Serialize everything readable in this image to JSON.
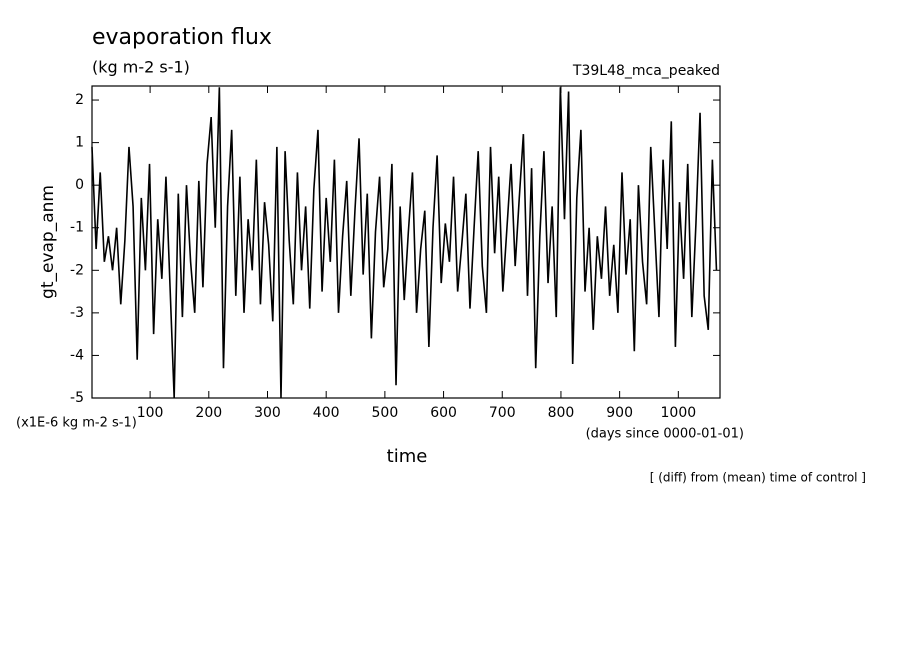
{
  "chart_data": {
    "type": "line",
    "title": "evaporation flux",
    "subtitle": "(kg m-2 s-1)",
    "run_label": "T39L48_mca_peaked",
    "y_label": "gt_evap_anm",
    "y_unit": "(x1E-6 kg m-2 s-1)",
    "x_label": "time",
    "x_unit": "(days since 0000-01-01)",
    "note": "[ (diff) from (mean) time of control ]",
    "xlim": [
      1,
      1071
    ],
    "ylim": [
      -5,
      2.33
    ],
    "xticks": [
      100,
      200,
      300,
      400,
      500,
      600,
      700,
      800,
      900,
      1000
    ],
    "yticks": [
      -5,
      -4,
      -3,
      -2,
      -1,
      0,
      1,
      2
    ],
    "series": [
      {
        "name": "gt_evap_anm",
        "color": "#000000",
        "x": [
          1,
          8,
          15,
          22,
          29,
          36,
          43,
          50,
          57,
          64,
          71,
          78,
          85,
          92,
          99,
          106,
          113,
          120,
          127,
          134,
          141,
          148,
          155,
          162,
          169,
          176,
          183,
          190,
          197,
          204,
          211,
          218,
          225,
          232,
          239,
          246,
          253,
          260,
          267,
          274,
          281,
          288,
          295,
          302,
          309,
          316,
          323,
          330,
          337,
          344,
          351,
          358,
          365,
          372,
          379,
          386,
          393,
          400,
          407,
          414,
          421,
          428,
          435,
          442,
          449,
          456,
          463,
          470,
          477,
          484,
          491,
          498,
          505,
          512,
          519,
          526,
          533,
          540,
          547,
          554,
          561,
          568,
          575,
          582,
          589,
          596,
          603,
          610,
          617,
          624,
          631,
          638,
          645,
          652,
          659,
          666,
          673,
          680,
          687,
          694,
          701,
          708,
          715,
          722,
          729,
          736,
          743,
          750,
          757,
          764,
          771,
          778,
          785,
          792,
          799,
          806,
          813,
          820,
          827,
          834,
          841,
          848,
          855,
          862,
          869,
          876,
          883,
          890,
          897,
          904,
          911,
          918,
          925,
          932,
          939,
          946,
          953,
          960,
          967,
          974,
          981,
          988,
          995,
          1002,
          1009,
          1016,
          1023,
          1030,
          1037,
          1044,
          1051,
          1058,
          1065
        ],
        "values": [
          0.9,
          -1.5,
          0.3,
          -1.8,
          -1.2,
          -2.0,
          -1.0,
          -2.8,
          -1.3,
          0.9,
          -0.5,
          -4.1,
          -0.3,
          -2.0,
          0.5,
          -3.5,
          -0.8,
          -2.2,
          0.2,
          -2.4,
          -5.0,
          -0.2,
          -3.1,
          0.0,
          -1.8,
          -3.0,
          0.1,
          -2.4,
          0.5,
          1.6,
          -1.0,
          2.3,
          -4.3,
          -0.5,
          1.3,
          -2.6,
          0.2,
          -3.0,
          -0.8,
          -2.0,
          0.6,
          -2.8,
          -0.4,
          -1.4,
          -3.2,
          0.9,
          -5.0,
          0.8,
          -1.3,
          -2.8,
          0.3,
          -2.0,
          -0.5,
          -2.9,
          -0.1,
          1.3,
          -2.5,
          -0.3,
          -1.8,
          0.6,
          -3.0,
          -1.2,
          0.1,
          -2.6,
          -0.6,
          1.1,
          -2.1,
          -0.2,
          -3.6,
          -1.1,
          0.2,
          -2.4,
          -1.5,
          0.5,
          -4.7,
          -0.5,
          -2.7,
          -1.1,
          0.3,
          -3.0,
          -1.5,
          -0.6,
          -3.8,
          -1.0,
          0.7,
          -2.3,
          -0.9,
          -1.8,
          0.2,
          -2.5,
          -1.4,
          -0.2,
          -2.9,
          -1.0,
          0.8,
          -1.9,
          -3.0,
          0.9,
          -1.6,
          0.2,
          -2.5,
          -1.0,
          0.5,
          -1.9,
          -0.3,
          1.2,
          -2.6,
          0.4,
          -4.3,
          -1.2,
          0.8,
          -2.3,
          -0.5,
          -3.1,
          2.3,
          -0.8,
          2.2,
          -4.2,
          -0.3,
          1.3,
          -2.5,
          -1.0,
          -3.4,
          -1.2,
          -2.2,
          -0.5,
          -2.6,
          -1.4,
          -3.0,
          0.3,
          -2.1,
          -0.8,
          -3.9,
          0.0,
          -1.8,
          -2.8,
          0.9,
          -1.1,
          -3.1,
          0.6,
          -1.5,
          1.5,
          -3.8,
          -0.4,
          -2.2,
          0.5,
          -3.1,
          -0.9,
          1.7,
          -2.6,
          -3.4,
          0.6,
          -2.0
        ]
      }
    ]
  }
}
